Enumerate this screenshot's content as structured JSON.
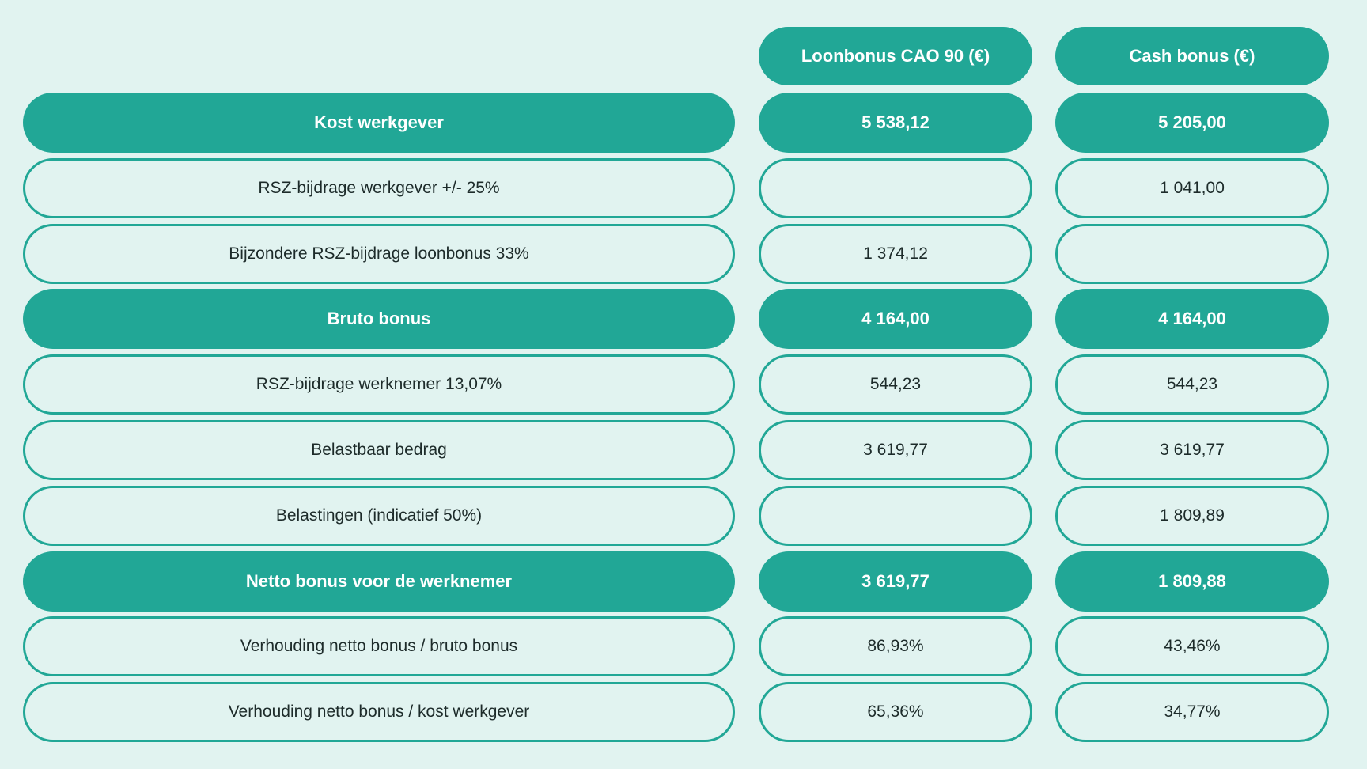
{
  "chart_data": {
    "type": "table",
    "columns": [
      "",
      "Loonbonus CAO 90 (€)",
      "Cash bonus (€)"
    ],
    "rows": [
      {
        "label": "Kost werkgever",
        "highlight": true,
        "values": [
          "5 538,12",
          "5 205,00"
        ]
      },
      {
        "label": "RSZ-bijdrage werkgever +/- 25%",
        "highlight": false,
        "values": [
          "",
          "1 041,00"
        ]
      },
      {
        "label": "Bijzondere RSZ-bijdrage loonbonus 33%",
        "highlight": false,
        "values": [
          "1 374,12",
          ""
        ]
      },
      {
        "label": "Bruto bonus",
        "highlight": true,
        "values": [
          "4 164,00",
          "4 164,00"
        ]
      },
      {
        "label": "RSZ-bijdrage werknemer 13,07%",
        "highlight": false,
        "values": [
          "544,23",
          "544,23"
        ]
      },
      {
        "label": "Belastbaar bedrag",
        "highlight": false,
        "values": [
          "3 619,77",
          "3 619,77"
        ]
      },
      {
        "label": "Belastingen (indicatief 50%)",
        "highlight": false,
        "values": [
          "",
          "1 809,89"
        ]
      },
      {
        "label": "Netto bonus voor de werknemer",
        "highlight": true,
        "values": [
          "3 619,77",
          "1 809,88"
        ]
      },
      {
        "label": "Verhouding netto bonus / bruto bonus",
        "highlight": false,
        "values": [
          "86,93%",
          "43,46%"
        ]
      },
      {
        "label": "Verhouding netto bonus / kost werkgever",
        "highlight": false,
        "values": [
          "65,36%",
          "34,77%"
        ]
      }
    ]
  },
  "colors": {
    "background": "#e1f3f0",
    "accent": "#21a796",
    "text": "#1d2b2a",
    "header_text": "#ffffff"
  }
}
